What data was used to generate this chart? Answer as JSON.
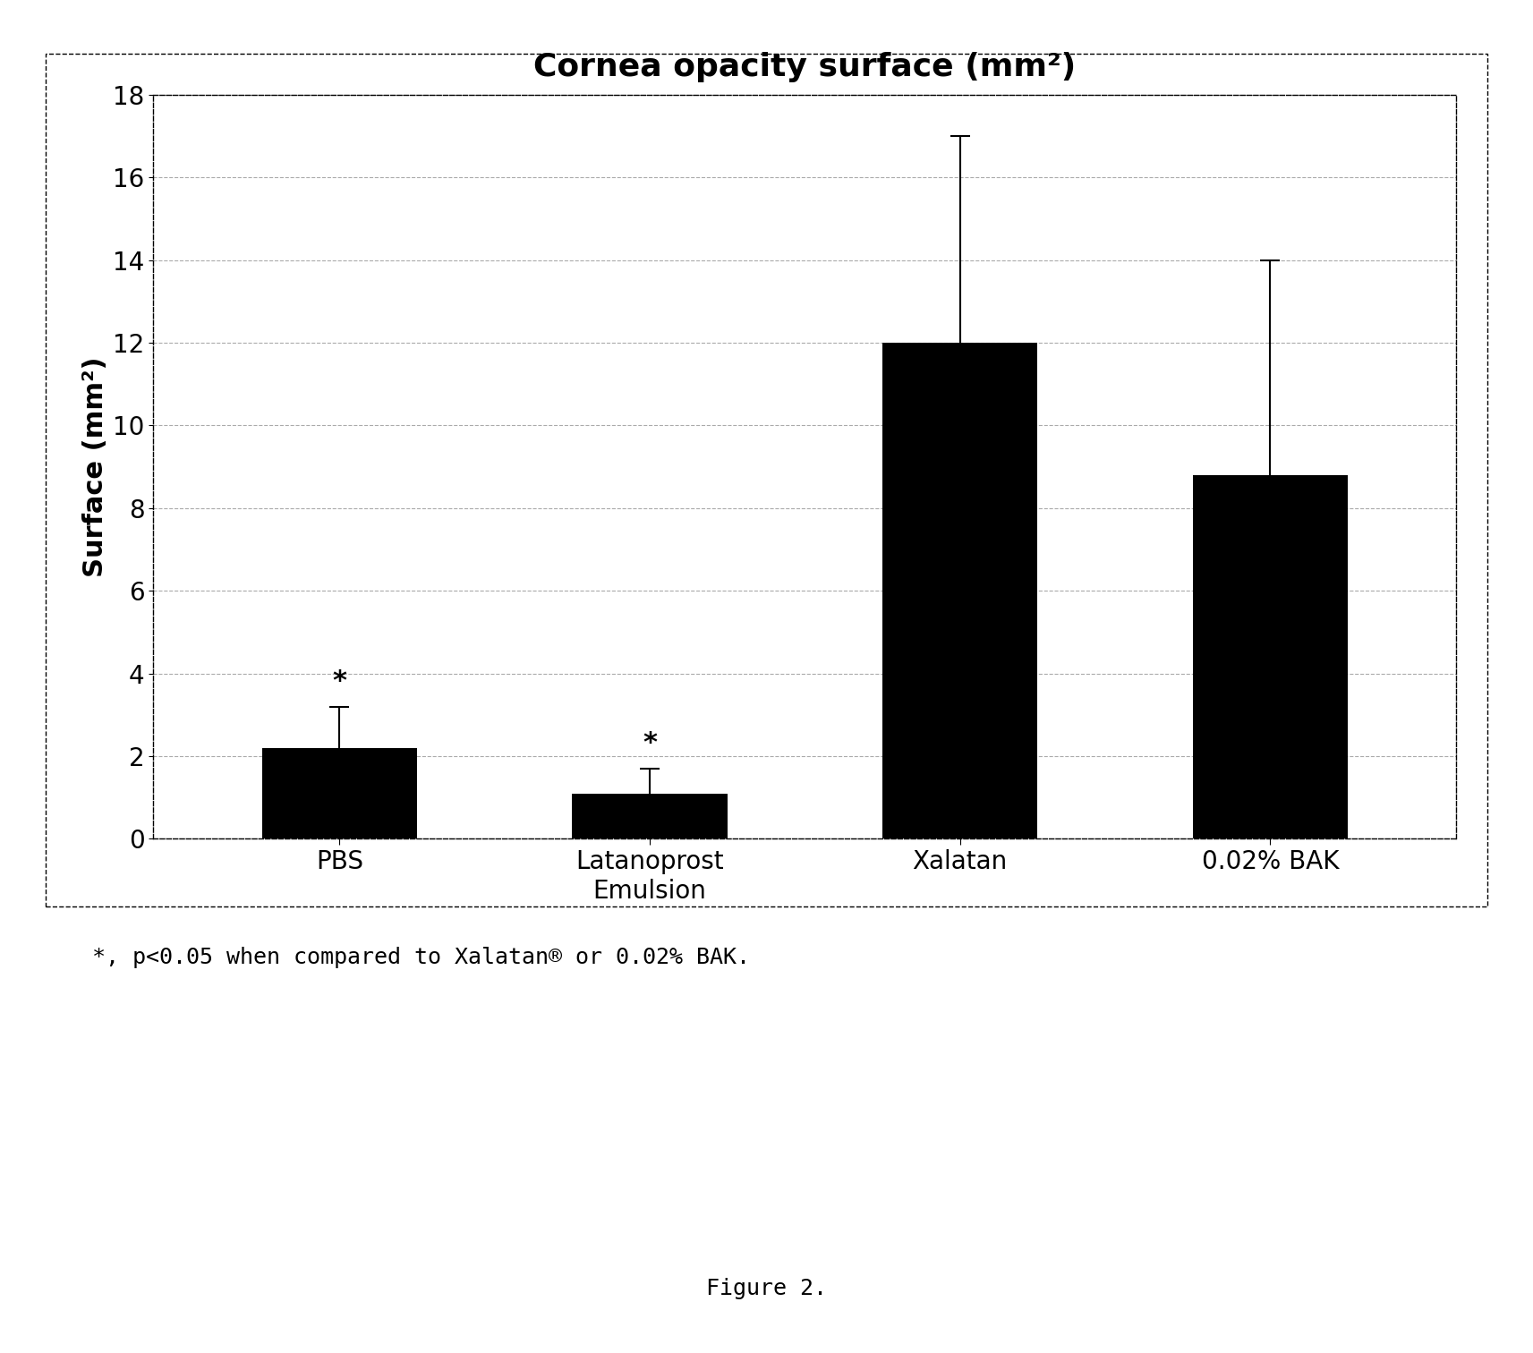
{
  "title": "Cornea opacity surface (mm²)",
  "ylabel": "Surface (mm²)",
  "categories": [
    "PBS",
    "Latanoprost\nEmulsion",
    "Xalatan",
    "0.02% BAK"
  ],
  "values": [
    2.2,
    1.1,
    12.0,
    8.8
  ],
  "errors": [
    1.0,
    0.6,
    5.0,
    5.2
  ],
  "bar_color": "#000000",
  "ylim": [
    0,
    18
  ],
  "yticks": [
    0,
    2,
    4,
    6,
    8,
    10,
    12,
    14,
    16,
    18
  ],
  "significance": [
    true,
    true,
    false,
    false
  ],
  "footnote": "*, p<0.05 when compared to Xalatan® or 0.02% BAK.",
  "figure_label": "Figure 2.",
  "background_color": "#ffffff",
  "plot_bg_color": "#ffffff",
  "border_color": "#000000",
  "grid_color": "#aaaaaa",
  "title_fontsize": 26,
  "axis_label_fontsize": 22,
  "tick_fontsize": 20,
  "footnote_fontsize": 18,
  "figure_label_fontsize": 18
}
